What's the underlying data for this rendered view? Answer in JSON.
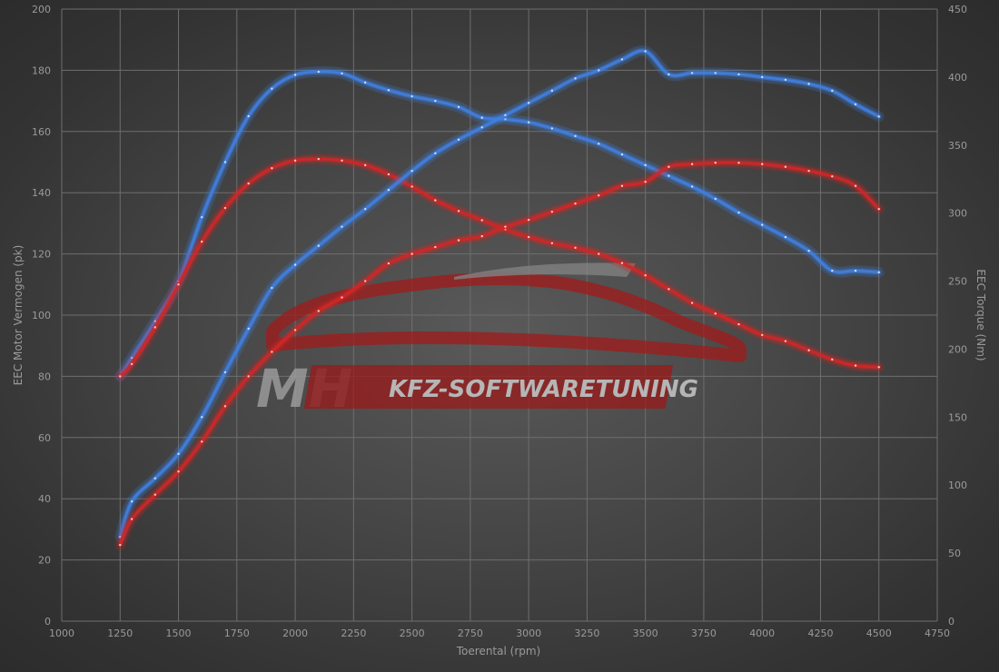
{
  "chart_data": {
    "type": "line",
    "xlabel": "Toerental (rpm)",
    "ylabel_left": "EEC Motor Vermogen (pk)",
    "ylabel_right": "EEC Torque (Nm)",
    "x_ticks": [
      1000,
      1250,
      1500,
      1750,
      2000,
      2250,
      2500,
      2750,
      3000,
      3250,
      3500,
      3750,
      4000,
      4250,
      4500,
      4750
    ],
    "y_left_ticks": [
      0,
      20,
      40,
      60,
      80,
      100,
      120,
      140,
      160,
      180,
      200
    ],
    "y_right_ticks": [
      0,
      50,
      100,
      150,
      200,
      250,
      300,
      350,
      400,
      450
    ],
    "xlim": [
      1000,
      4750
    ],
    "ylim_left": [
      0,
      200
    ],
    "ylim_right": [
      0,
      450
    ],
    "grid": true,
    "series": [
      {
        "axis": "left",
        "color": "#3f7fe0",
        "x": [
          1250,
          1300,
          1400,
          1500,
          1600,
          1700,
          1800,
          1900,
          2000,
          2100,
          2200,
          2300,
          2400,
          2500,
          2600,
          2700,
          2800,
          2900,
          3000,
          3100,
          3200,
          3300,
          3400,
          3500,
          3600,
          3700,
          3800,
          3900,
          4000,
          4100,
          4200,
          4300,
          4400,
          4500
        ],
        "y": [
          80,
          86,
          98,
          111,
          132,
          150,
          165,
          174,
          178.5,
          179.5,
          179,
          176,
          173.5,
          171.5,
          170,
          168,
          164.5,
          164,
          163,
          161,
          158.5,
          156,
          152.5,
          149,
          145.5,
          142,
          138,
          133.5,
          129.5,
          125.5,
          121,
          114.5,
          114.5,
          114
        ]
      },
      {
        "axis": "left",
        "color": "#d02828",
        "x": [
          1250,
          1300,
          1400,
          1500,
          1600,
          1700,
          1800,
          1900,
          2000,
          2100,
          2200,
          2300,
          2400,
          2500,
          2600,
          2700,
          2800,
          2900,
          3000,
          3100,
          3200,
          3300,
          3400,
          3500,
          3600,
          3700,
          3800,
          3900,
          4000,
          4100,
          4200,
          4300,
          4400,
          4500
        ],
        "y": [
          80,
          84,
          96,
          110,
          124,
          135,
          143,
          148,
          150.5,
          151,
          150.5,
          149,
          146,
          142,
          137.5,
          134,
          131,
          128,
          125.5,
          123.5,
          122,
          120,
          117,
          113,
          108.5,
          104,
          100.5,
          97,
          93.5,
          91.5,
          88.5,
          85.5,
          83.5,
          83
        ]
      },
      {
        "axis": "right",
        "color": "#3f7fe0",
        "x": [
          1250,
          1300,
          1400,
          1500,
          1600,
          1700,
          1800,
          1900,
          2000,
          2100,
          2200,
          2300,
          2400,
          2500,
          2600,
          2700,
          2800,
          2900,
          3000,
          3100,
          3200,
          3300,
          3400,
          3500,
          3600,
          3700,
          3800,
          3900,
          4000,
          4100,
          4200,
          4300,
          4400,
          4500
        ],
        "y": [
          62,
          88,
          105,
          123,
          150,
          183,
          215,
          245,
          262,
          276,
          290,
          303,
          317,
          331,
          344,
          354,
          363,
          372,
          381,
          390,
          399,
          405,
          413,
          419,
          402,
          403,
          403,
          402,
          400,
          398,
          395,
          390,
          380,
          371
        ]
      },
      {
        "axis": "right",
        "color": "#d02828",
        "x": [
          1250,
          1300,
          1400,
          1500,
          1600,
          1700,
          1800,
          1900,
          2000,
          2100,
          2200,
          2300,
          2400,
          2500,
          2600,
          2700,
          2800,
          2900,
          3000,
          3100,
          3200,
          3300,
          3400,
          3500,
          3600,
          3700,
          3800,
          3900,
          4000,
          4100,
          4200,
          4300,
          4400,
          4500
        ],
        "y": [
          56,
          75,
          93,
          110,
          132,
          158,
          180,
          198,
          214,
          228,
          238,
          250,
          263,
          270,
          275,
          280,
          283,
          290,
          295,
          301,
          307,
          313,
          320,
          323,
          334,
          336,
          337,
          337,
          336,
          334,
          331,
          327,
          320,
          303
        ]
      }
    ]
  },
  "watermark": {
    "brand": "MH",
    "text": "KFZ-SOFTWARETUNING"
  }
}
